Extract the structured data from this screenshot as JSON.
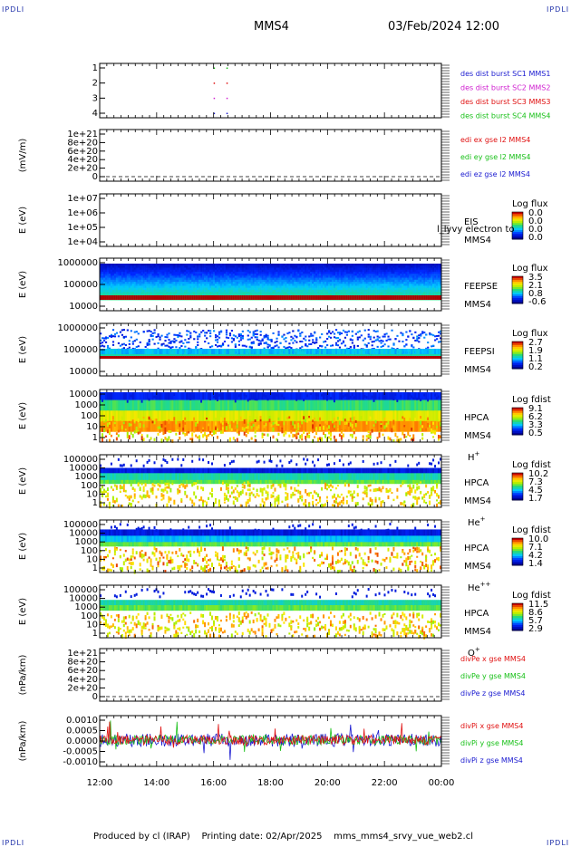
{
  "header": {
    "corner_tl": "IPDLI",
    "corner_tr": "IPDLI",
    "corner_bl": "IPDLI",
    "corner_br": "IPDLI",
    "spacecraft": "MMS4",
    "datetime": "03/Feb/2024 12:00"
  },
  "footer": {
    "text": "Produced by cl (IRAP)    Printing date: 02/Apr/2025    mms_mms4_srvy_vue_web2.cl"
  },
  "colors": {
    "blue": "#1a1ad0",
    "magenta": "#d020d0",
    "red": "#e01010",
    "green": "#18c018",
    "dark_blue": "#0a0a90"
  },
  "chart_data": [
    {
      "type": "scatter",
      "id": "burst",
      "ylabel": "",
      "yticks": [
        "1",
        "2",
        "3",
        "4"
      ],
      "ylim": [
        0.5,
        4.5
      ],
      "series": [
        {
          "name": "des dist burst SC1 MMS1",
          "color": "#1a1ad0",
          "y": 1,
          "x": [
            16.0,
            16.45
          ]
        },
        {
          "name": "des dist burst SC2 MMS2",
          "color": "#d020d0",
          "y": 2,
          "x": [
            16.0,
            16.45
          ]
        },
        {
          "name": "des dist burst SC3 MMS3",
          "color": "#e01010",
          "y": 3,
          "x": [
            16.0,
            16.45
          ]
        },
        {
          "name": "des dist burst SC4 MMS4",
          "color": "#18c018",
          "y": 4,
          "x": [
            16.0,
            16.45
          ]
        }
      ]
    },
    {
      "type": "line",
      "id": "edi",
      "ylabel": "(mV/m)",
      "yticks": [
        "1e+21",
        "8e+20",
        "6e+20",
        "4e+20",
        "2e+20",
        "0"
      ],
      "ylim": [
        0,
        1e+21
      ],
      "series": [
        {
          "name": "edi ex gse l2 MMS4",
          "color": "#e01010"
        },
        {
          "name": "edi ey gse l2 MMS4",
          "color": "#18c018"
        },
        {
          "name": "edi ez gse l2 MMS4",
          "color": "#1a1ad0"
        }
      ]
    },
    {
      "type": "heatmap",
      "id": "eis",
      "ylabel": "E (eV)",
      "yticks": [
        "1e+07",
        "1e+06",
        "1e+05",
        "1e+04"
      ],
      "ylim": [
        10000.0,
        10000000.0
      ],
      "labels": [
        "EIS",
        "MMS4"
      ],
      "overlay_text": "l_lyvy electron to",
      "colorbar": {
        "title": "Log flux",
        "ticks": [
          "0.0",
          "0.0",
          "0.0",
          "0.0"
        ]
      }
    },
    {
      "type": "heatmap",
      "id": "feepse",
      "ylabel": "E (eV)",
      "yticks": [
        "1000000",
        "100000",
        "10000"
      ],
      "ylim": [
        10000,
        1000000
      ],
      "labels": [
        "FEEPSE",
        "MMS4"
      ],
      "colorbar": {
        "title": "Log flux",
        "ticks": [
          "3.5",
          "2.1",
          "0.8",
          "-0.6"
        ]
      }
    },
    {
      "type": "heatmap",
      "id": "feepsi",
      "ylabel": "E (eV)",
      "yticks": [
        "1000000",
        "100000",
        "10000"
      ],
      "ylim": [
        10000,
        1000000
      ],
      "labels": [
        "FEEPSI",
        "MMS4"
      ],
      "colorbar": {
        "title": "Log flux",
        "ticks": [
          "2.7",
          "1.9",
          "1.1",
          "0.2"
        ]
      }
    },
    {
      "type": "heatmap",
      "id": "hpca_h",
      "ylabel": "E (eV)",
      "yticks": [
        "10000",
        "1000",
        "100",
        "10",
        "1"
      ],
      "ylim": [
        1,
        10000
      ],
      "labels": [
        "HPCA",
        "MMS4"
      ],
      "species": "H",
      "species_charge": "+",
      "colorbar": {
        "title": "Log fdist",
        "ticks": [
          "9.1",
          "6.2",
          "3.3",
          "0.5"
        ]
      }
    },
    {
      "type": "heatmap",
      "id": "hpca_he",
      "ylabel": "E (eV)",
      "yticks": [
        "100000",
        "10000",
        "1000",
        "100",
        "10",
        "1"
      ],
      "ylim": [
        1,
        100000
      ],
      "labels": [
        "HPCA",
        "MMS4"
      ],
      "species": "He",
      "species_charge": "+",
      "colorbar": {
        "title": "Log fdist",
        "ticks": [
          "10.2",
          "7.3",
          "4.5",
          "1.7"
        ]
      }
    },
    {
      "type": "heatmap",
      "id": "hpca_hepp",
      "ylabel": "E (eV)",
      "yticks": [
        "100000",
        "10000",
        "1000",
        "100",
        "10",
        "1"
      ],
      "ylim": [
        1,
        100000
      ],
      "labels": [
        "HPCA",
        "MMS4"
      ],
      "species": "He",
      "species_charge": "++",
      "colorbar": {
        "title": "Log fdist",
        "ticks": [
          "10.0",
          "7.1",
          "4.2",
          "1.4"
        ]
      }
    },
    {
      "type": "heatmap",
      "id": "hpca_o",
      "ylabel": "E (eV)",
      "yticks": [
        "100000",
        "10000",
        "1000",
        "100",
        "10",
        "1"
      ],
      "ylim": [
        1,
        100000
      ],
      "labels": [
        "HPCA",
        "MMS4"
      ],
      "species": "O",
      "species_charge": "+",
      "colorbar": {
        "title": "Log fdist",
        "ticks": [
          "11.5",
          "8.6",
          "5.7",
          "2.9"
        ]
      }
    },
    {
      "type": "line",
      "id": "divpe",
      "ylabel": "(nPa/km)",
      "yticks": [
        "1e+21",
        "8e+20",
        "6e+20",
        "4e+20",
        "2e+20",
        "0"
      ],
      "ylim": [
        0,
        1e+21
      ],
      "series": [
        {
          "name": "divPe x gse MMS4",
          "color": "#e01010"
        },
        {
          "name": "divPe y gse MMS4",
          "color": "#18c018"
        },
        {
          "name": "divPe z gse MMS4",
          "color": "#1a1ad0"
        }
      ]
    },
    {
      "type": "line",
      "id": "divpi",
      "ylabel": "(nPa/km)",
      "yticks": [
        "0.0010",
        "0.0005",
        "0.0000",
        "-0.0005",
        "-0.0010"
      ],
      "ylim": [
        -0.0013,
        0.0013
      ],
      "series": [
        {
          "name": "divPi x gse MMS4",
          "color": "#e01010"
        },
        {
          "name": "divPi y gse MMS4",
          "color": "#18c018"
        },
        {
          "name": "divPi z gse MMS4",
          "color": "#1a1ad0"
        }
      ]
    }
  ],
  "time_axis": {
    "ticks": [
      "12:00",
      "14:00",
      "16:00",
      "18:00",
      "20:00",
      "22:00",
      "00:00"
    ],
    "range_hours": [
      12,
      24
    ]
  }
}
